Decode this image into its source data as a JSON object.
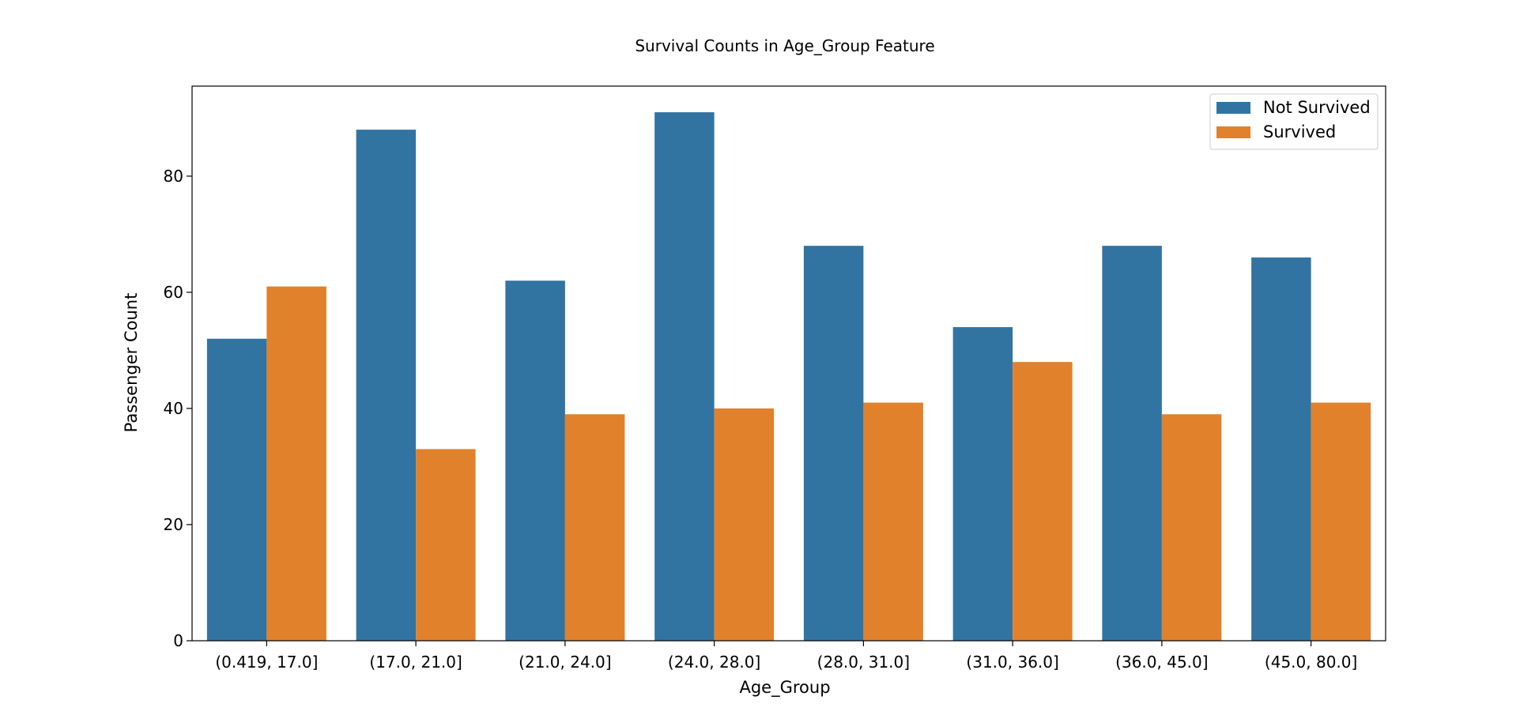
{
  "chart_data": {
    "type": "bar",
    "title": "Survival Counts in Age_Group Feature",
    "xlabel": "Age_Group",
    "ylabel": "Passenger Count",
    "categories": [
      "(0.419, 17.0]",
      "(17.0, 21.0]",
      "(21.0, 24.0]",
      "(24.0, 28.0]",
      "(28.0, 31.0]",
      "(31.0, 36.0]",
      "(36.0, 45.0]",
      "(45.0, 80.0]"
    ],
    "series": [
      {
        "name": "Not Survived",
        "color": "#3274a1",
        "values": [
          52,
          88,
          62,
          91,
          68,
          54,
          68,
          66
        ]
      },
      {
        "name": "Survived",
        "color": "#e1812c",
        "values": [
          61,
          33,
          39,
          40,
          41,
          48,
          39,
          41
        ]
      }
    ],
    "ylim": [
      0,
      95.5
    ],
    "yticks": [
      0,
      20,
      40,
      60,
      80
    ],
    "grid": false,
    "legend_position": "top-right"
  }
}
